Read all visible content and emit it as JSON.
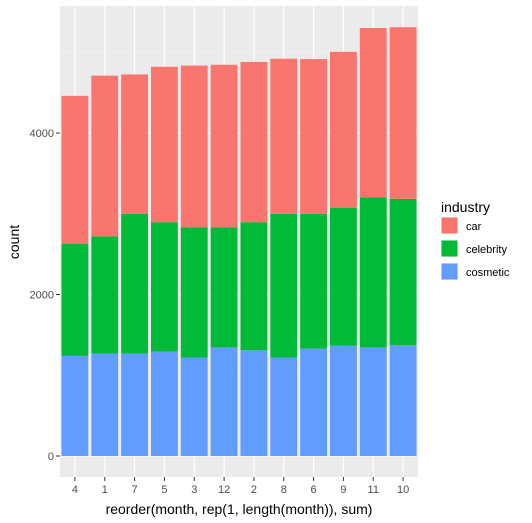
{
  "chart_data": {
    "type": "bar",
    "stacked": true,
    "xlabel": "reorder(month, rep(1, length(month)), sum)",
    "ylabel": "count",
    "categories": [
      "4",
      "1",
      "7",
      "5",
      "3",
      "12",
      "2",
      "8",
      "6",
      "9",
      "11",
      "10"
    ],
    "ylim": [
      0,
      5500
    ],
    "yticks": [
      0,
      2000,
      4000
    ],
    "grid": true,
    "legend": {
      "title": "industry",
      "position": "right"
    },
    "series": [
      {
        "name": "cosmetic",
        "color": "#619CFF",
        "values": [
          1240,
          1270,
          1270,
          1295,
          1220,
          1345,
          1310,
          1220,
          1330,
          1365,
          1345,
          1375
        ]
      },
      {
        "name": "celebrity",
        "color": "#00BA38",
        "values": [
          1390,
          1450,
          1730,
          1600,
          1610,
          1485,
          1585,
          1780,
          1670,
          1710,
          1860,
          1810
        ]
      },
      {
        "name": "car",
        "color": "#F8766D",
        "values": [
          1830,
          1990,
          1725,
          1925,
          2005,
          2015,
          1985,
          1920,
          1915,
          1930,
          2095,
          2125
        ]
      }
    ]
  }
}
